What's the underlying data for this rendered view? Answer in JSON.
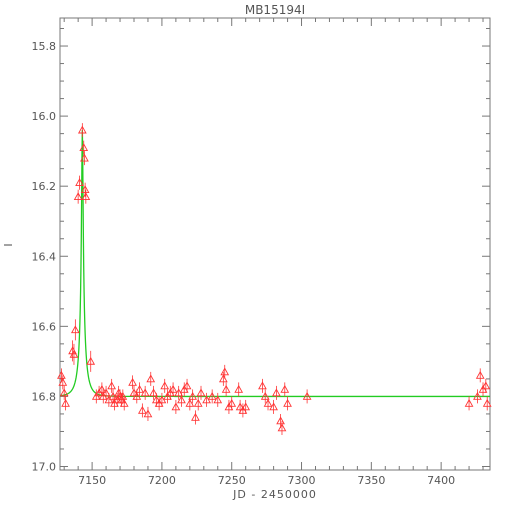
{
  "chart_data": {
    "type": "scatter",
    "title": "MB15194I",
    "xlabel": "JD - 2450000",
    "ylabel": "I",
    "xlim": [
      7127,
      7435
    ],
    "ylim": [
      15.72,
      17.01
    ],
    "y_inverted": true,
    "grid": false,
    "colors": {
      "points": "#ff3333",
      "model": "#22cc22",
      "axes": "#777777"
    },
    "x_ticks": [
      7150,
      7200,
      7250,
      7300,
      7350,
      7400
    ],
    "x_tick_labels": [
      "7150",
      "7200",
      "7250",
      "7300",
      "7350",
      "7400"
    ],
    "y_ticks": [
      15.8,
      16.0,
      16.2,
      16.4,
      16.6,
      16.8,
      17.0
    ],
    "y_tick_labels": [
      "15.8",
      "16.0",
      "16.2",
      "16.4",
      "16.6",
      "16.8",
      "17.0"
    ],
    "model": {
      "t0": 7143.0,
      "u0": 0.09,
      "tE": 5.5,
      "baseline": 16.8,
      "fs": 0.1,
      "type": "microlensing-light-curve"
    },
    "series": [
      {
        "marker": "open-triangle",
        "points": [
          [
            7128,
            16.74,
            0.02
          ],
          [
            7129,
            16.76,
            0.02
          ],
          [
            7130,
            16.79,
            0.02
          ],
          [
            7131,
            16.82,
            0.02
          ],
          [
            7136,
            16.67,
            0.03
          ],
          [
            7137,
            16.68,
            0.03
          ],
          [
            7138,
            16.61,
            0.03
          ],
          [
            7140,
            16.23,
            0.02
          ],
          [
            7141,
            16.19,
            0.02
          ],
          [
            7143,
            16.04,
            0.02
          ],
          [
            7144,
            16.09,
            0.02
          ],
          [
            7144.5,
            16.12,
            0.02
          ],
          [
            7145,
            16.21,
            0.02
          ],
          [
            7145.5,
            16.23,
            0.02
          ],
          [
            7149,
            16.7,
            0.03
          ],
          [
            7153,
            16.8,
            0.02
          ],
          [
            7155,
            16.79,
            0.02
          ],
          [
            7157,
            16.78,
            0.02
          ],
          [
            7158,
            16.8,
            0.02
          ],
          [
            7160,
            16.79,
            0.02
          ],
          [
            7162,
            16.81,
            0.02
          ],
          [
            7164,
            16.77,
            0.02
          ],
          [
            7165,
            16.8,
            0.02
          ],
          [
            7166,
            16.82,
            0.02
          ],
          [
            7168,
            16.81,
            0.02
          ],
          [
            7169,
            16.79,
            0.02
          ],
          [
            7170,
            16.8,
            0.02
          ],
          [
            7171,
            16.81,
            0.02
          ],
          [
            7172,
            16.8,
            0.02
          ],
          [
            7173,
            16.82,
            0.02
          ],
          [
            7179,
            16.76,
            0.02
          ],
          [
            7180,
            16.79,
            0.02
          ],
          [
            7182,
            16.8,
            0.02
          ],
          [
            7184,
            16.78,
            0.02
          ],
          [
            7186,
            16.84,
            0.02
          ],
          [
            7188,
            16.79,
            0.02
          ],
          [
            7190,
            16.85,
            0.02
          ],
          [
            7192,
            16.75,
            0.02
          ],
          [
            7194,
            16.79,
            0.02
          ],
          [
            7196,
            16.81,
            0.02
          ],
          [
            7198,
            16.82,
            0.02
          ],
          [
            7200,
            16.81,
            0.02
          ],
          [
            7202,
            16.77,
            0.02
          ],
          [
            7204,
            16.8,
            0.02
          ],
          [
            7206,
            16.79,
            0.02
          ],
          [
            7208,
            16.78,
            0.02
          ],
          [
            7210,
            16.83,
            0.02
          ],
          [
            7212,
            16.79,
            0.02
          ],
          [
            7214,
            16.81,
            0.02
          ],
          [
            7216,
            16.78,
            0.02
          ],
          [
            7218,
            16.77,
            0.02
          ],
          [
            7220,
            16.82,
            0.02
          ],
          [
            7222,
            16.8,
            0.02
          ],
          [
            7224,
            16.86,
            0.02
          ],
          [
            7226,
            16.82,
            0.02
          ],
          [
            7228,
            16.79,
            0.02
          ],
          [
            7232,
            16.81,
            0.02
          ],
          [
            7236,
            16.8,
            0.02
          ],
          [
            7240,
            16.81,
            0.02
          ],
          [
            7244,
            16.75,
            0.02
          ],
          [
            7245,
            16.73,
            0.02
          ],
          [
            7246,
            16.78,
            0.02
          ],
          [
            7248,
            16.83,
            0.02
          ],
          [
            7250,
            16.82,
            0.02
          ],
          [
            7255,
            16.78,
            0.02
          ],
          [
            7256,
            16.83,
            0.02
          ],
          [
            7258,
            16.84,
            0.02
          ],
          [
            7260,
            16.83,
            0.02
          ],
          [
            7272,
            16.77,
            0.02
          ],
          [
            7274,
            16.8,
            0.02
          ],
          [
            7276,
            16.82,
            0.02
          ],
          [
            7280,
            16.83,
            0.02
          ],
          [
            7282,
            16.79,
            0.02
          ],
          [
            7285,
            16.87,
            0.02
          ],
          [
            7286,
            16.89,
            0.02
          ],
          [
            7288,
            16.78,
            0.02
          ],
          [
            7290,
            16.82,
            0.02
          ],
          [
            7304,
            16.8,
            0.02
          ],
          [
            7420,
            16.82,
            0.02
          ],
          [
            7426,
            16.8,
            0.02
          ],
          [
            7428,
            16.74,
            0.02
          ],
          [
            7430,
            16.78,
            0.02
          ],
          [
            7432,
            16.77,
            0.02
          ],
          [
            7433,
            16.82,
            0.02
          ]
        ]
      }
    ]
  }
}
